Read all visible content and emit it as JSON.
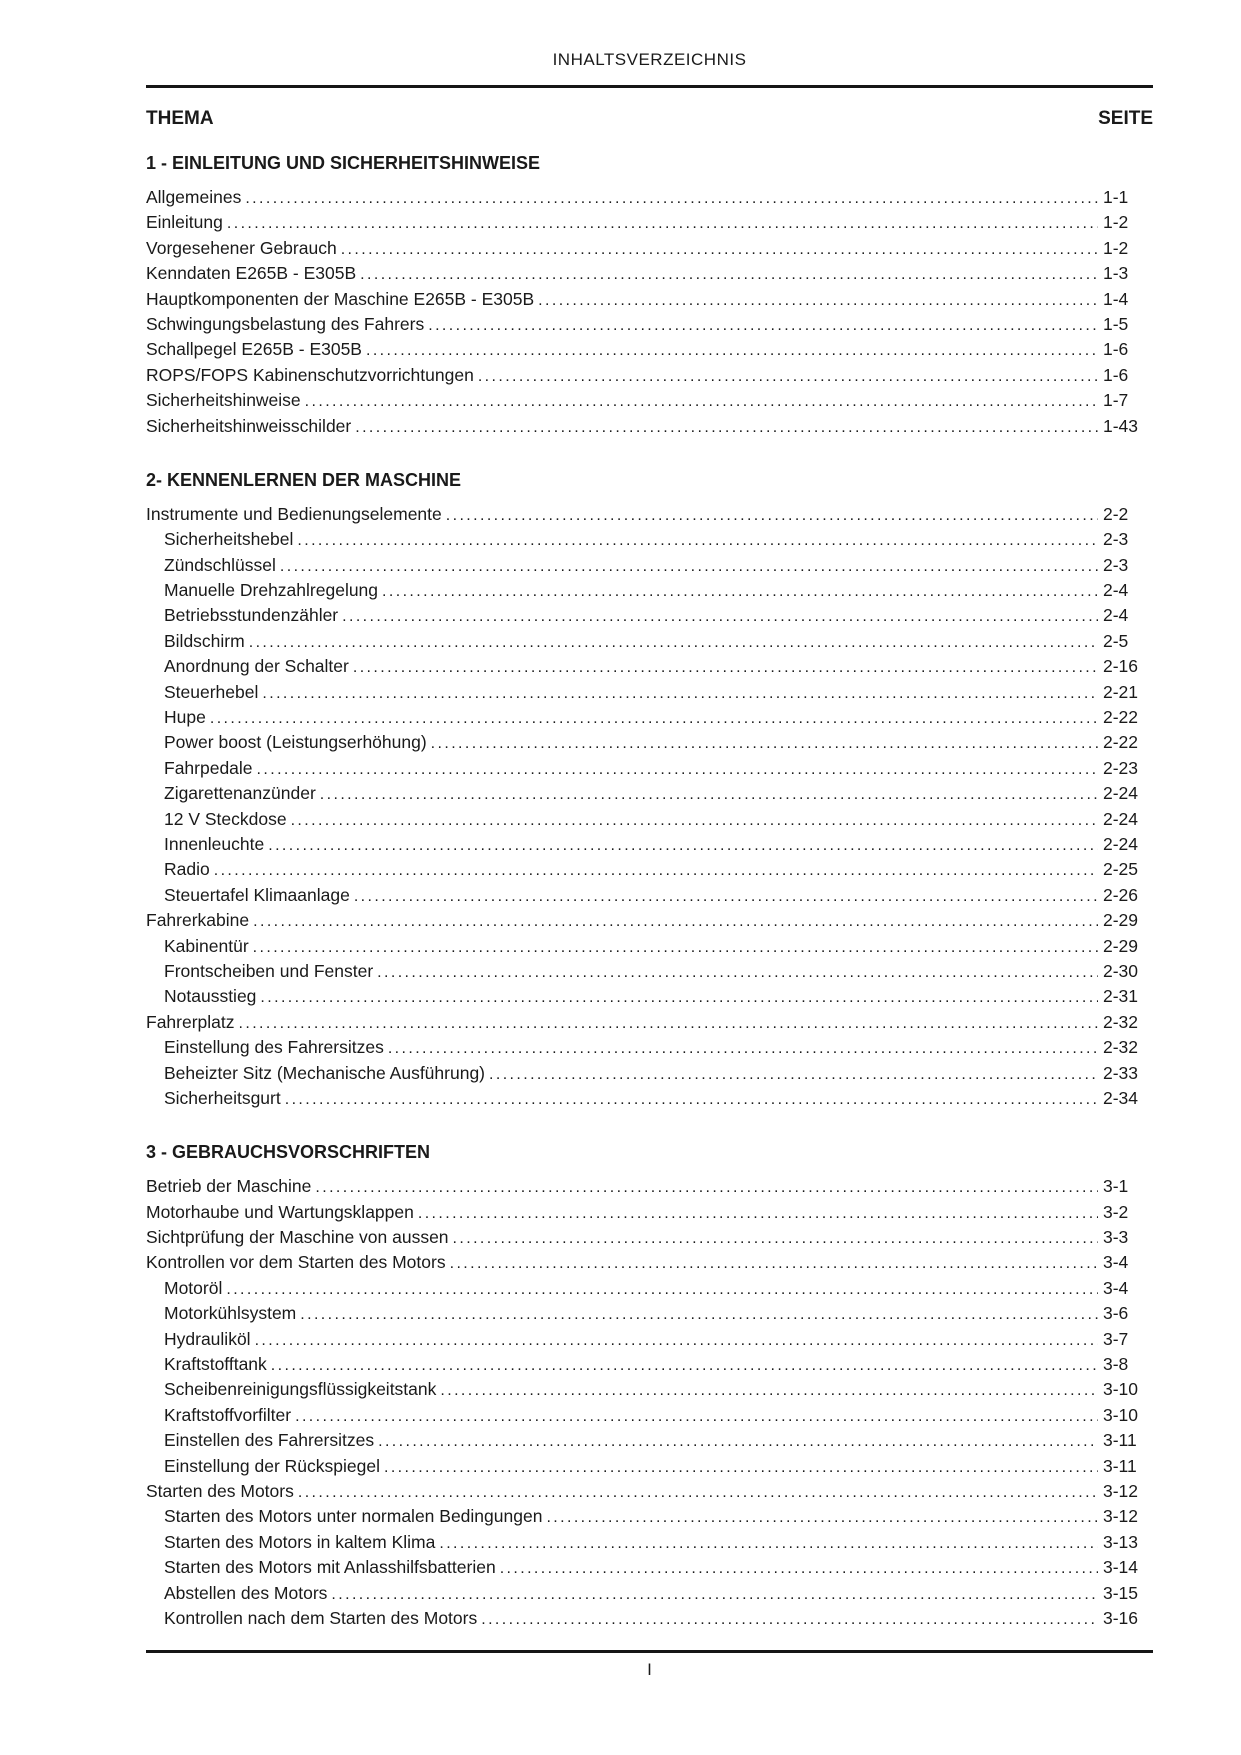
{
  "header": {
    "title": "INHALTSVERZEICHNIS",
    "column_left": "THEMA",
    "column_right": "SEITE"
  },
  "footer": {
    "page_number": "I"
  },
  "sections": [
    {
      "heading": "1 - EINLEITUNG UND SICHERHEITSHINWEISE",
      "entries": [
        {
          "label": "Allgemeines",
          "page": "1-1",
          "indent": 0
        },
        {
          "label": "Einleitung",
          "page": "1-2",
          "indent": 0
        },
        {
          "label": "Vorgesehener Gebrauch",
          "page": "1-2",
          "indent": 0
        },
        {
          "label": "Kenndaten E265B - E305B",
          "page": "1-3",
          "indent": 0
        },
        {
          "label": "Hauptkomponenten der Maschine E265B - E305B",
          "page": "1-4",
          "indent": 0
        },
        {
          "label": "Schwingungsbelastung des Fahrers",
          "page": "1-5",
          "indent": 0
        },
        {
          "label": "Schallpegel E265B - E305B",
          "page": "1-6",
          "indent": 0
        },
        {
          "label": "ROPS/FOPS Kabinenschutzvorrichtungen",
          "page": "1-6",
          "indent": 0
        },
        {
          "label": "Sicherheitshinweise",
          "page": "1-7",
          "indent": 0
        },
        {
          "label": "Sicherheitshinweisschilder",
          "page": "1-43",
          "indent": 0
        }
      ]
    },
    {
      "heading": "2- KENNENLERNEN DER MASCHINE",
      "entries": [
        {
          "label": "Instrumente und Bedienungselemente",
          "page": "2-2",
          "indent": 0
        },
        {
          "label": "Sicherheitshebel",
          "page": "2-3",
          "indent": 1
        },
        {
          "label": "Zündschlüssel",
          "page": "2-3",
          "indent": 1
        },
        {
          "label": "Manuelle Drehzahlregelung",
          "page": "2-4",
          "indent": 1
        },
        {
          "label": "Betriebsstundenzähler",
          "page": "2-4",
          "indent": 1
        },
        {
          "label": "Bildschirm",
          "page": "2-5",
          "indent": 1
        },
        {
          "label": "Anordnung der Schalter",
          "page": "2-16",
          "indent": 1
        },
        {
          "label": "Steuerhebel",
          "page": "2-21",
          "indent": 1
        },
        {
          "label": "Hupe",
          "page": "2-22",
          "indent": 1
        },
        {
          "label": "Power boost (Leistungserhöhung)",
          "page": "2-22",
          "indent": 1
        },
        {
          "label": "Fahrpedale",
          "page": "2-23",
          "indent": 1
        },
        {
          "label": "Zigarettenanzünder",
          "page": "2-24",
          "indent": 1
        },
        {
          "label": "12 V Steckdose",
          "page": "2-24",
          "indent": 1
        },
        {
          "label": "Innenleuchte",
          "page": "2-24",
          "indent": 1
        },
        {
          "label": "Radio",
          "page": "2-25",
          "indent": 1
        },
        {
          "label": "Steuertafel Klimaanlage",
          "page": "2-26",
          "indent": 1
        },
        {
          "label": "Fahrerkabine",
          "page": "2-29",
          "indent": 0
        },
        {
          "label": "Kabinentür",
          "page": "2-29",
          "indent": 1
        },
        {
          "label": "Frontscheiben und Fenster",
          "page": "2-30",
          "indent": 1
        },
        {
          "label": "Notausstieg",
          "page": "2-31",
          "indent": 1
        },
        {
          "label": "Fahrerplatz",
          "page": "2-32",
          "indent": 0
        },
        {
          "label": "Einstellung des Fahrersitzes",
          "page": "2-32",
          "indent": 1
        },
        {
          "label": "Beheizter Sitz (Mechanische Ausführung)",
          "page": "2-33",
          "indent": 1
        },
        {
          "label": "Sicherheitsgurt",
          "page": "2-34",
          "indent": 1
        }
      ]
    },
    {
      "heading": "3 - GEBRAUCHSVORSCHRIFTEN",
      "entries": [
        {
          "label": "Betrieb der Maschine",
          "page": "3-1",
          "indent": 0
        },
        {
          "label": "Motorhaube und Wartungsklappen",
          "page": "3-2",
          "indent": 0
        },
        {
          "label": "Sichtprüfung der Maschine von aussen",
          "page": "3-3",
          "indent": 0
        },
        {
          "label": "Kontrollen vor dem Starten des Motors",
          "page": "3-4",
          "indent": 0
        },
        {
          "label": "Motoröl",
          "page": "3-4",
          "indent": 1
        },
        {
          "label": "Motorkühlsystem",
          "page": "3-6",
          "indent": 1
        },
        {
          "label": "Hydrauliköl",
          "page": "3-7",
          "indent": 1
        },
        {
          "label": "Kraftstofftank",
          "page": "3-8",
          "indent": 1
        },
        {
          "label": "Scheibenreinigungsflüssigkeitstank",
          "page": "3-10",
          "indent": 1
        },
        {
          "label": "Kraftstoffvorfilter",
          "page": "3-10",
          "indent": 1
        },
        {
          "label": "Einstellen des Fahrersitzes",
          "page": "3-11",
          "indent": 1
        },
        {
          "label": "Einstellung der Rückspiegel",
          "page": "3-11",
          "indent": 1
        },
        {
          "label": "Starten des Motors",
          "page": "3-12",
          "indent": 0
        },
        {
          "label": "Starten des Motors unter normalen Bedingungen",
          "page": "3-12",
          "indent": 1
        },
        {
          "label": "Starten des Motors in kaltem Klima",
          "page": "3-13",
          "indent": 1
        },
        {
          "label": "Starten des Motors mit Anlasshilfsbatterien",
          "page": "3-14",
          "indent": 1
        },
        {
          "label": "Abstellen des Motors",
          "page": "3-15",
          "indent": 1
        },
        {
          "label": "Kontrollen nach dem Starten des Motors",
          "page": "3-16",
          "indent": 1
        }
      ]
    }
  ]
}
